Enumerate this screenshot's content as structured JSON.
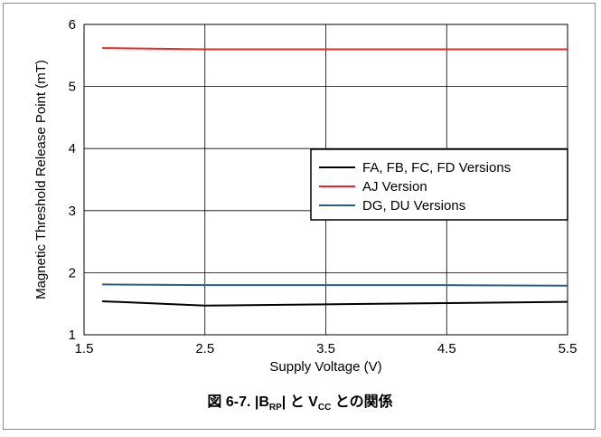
{
  "chart_data": {
    "type": "line",
    "title": "",
    "xlabel": "Supply Voltage (V)",
    "ylabel": "Magnetic Threshold Release Point (mT)",
    "xlim": [
      1.5,
      5.5
    ],
    "ylim": [
      1,
      6
    ],
    "x_ticks": [
      "1.5",
      "2.5",
      "3.5",
      "4.5",
      "5.5"
    ],
    "y_ticks": [
      "1",
      "2",
      "3",
      "4",
      "5",
      "6"
    ],
    "grid": true,
    "legend_position": "right-middle",
    "series": [
      {
        "name": "FA, FB, FC, FD Versions",
        "color": "#000000",
        "x": [
          1.65,
          2.5,
          3.5,
          4.5,
          5.5
        ],
        "y": [
          1.54,
          1.47,
          1.49,
          1.51,
          1.53
        ]
      },
      {
        "name": "AJ Version",
        "color": "#e8262b",
        "x": [
          1.65,
          2.5,
          3.5,
          4.5,
          5.5
        ],
        "y": [
          5.62,
          5.6,
          5.6,
          5.6,
          5.6
        ]
      },
      {
        "name": "DG, DU Versions",
        "color": "#2d5f7d",
        "x": [
          1.65,
          2.5,
          3.5,
          4.5,
          5.5
        ],
        "y": [
          1.81,
          1.8,
          1.8,
          1.8,
          1.79
        ]
      }
    ]
  },
  "caption": {
    "prefix": "図 6-7. |B",
    "b_sub": "RP",
    "middle": "| と V",
    "v_sub": "CC",
    "suffix": " との関係"
  }
}
